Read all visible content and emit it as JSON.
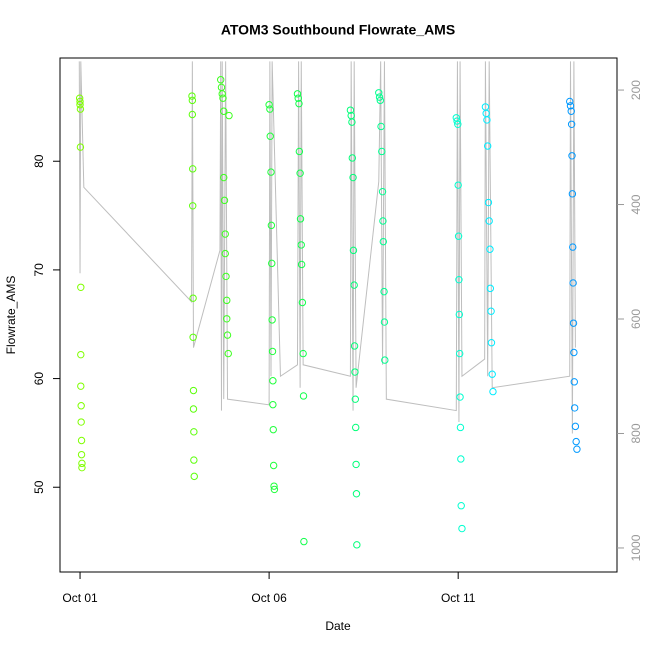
{
  "chart_data": {
    "type": "scatter",
    "title": "ATOM3 Southbound Flowrate_AMS",
    "x_label": "Date",
    "y_label": "Flowrate_AMS",
    "xlim": [
      0.47,
      15.2
    ],
    "xticks": [
      {
        "value": 1,
        "label": "Oct 01"
      },
      {
        "value": 6,
        "label": "Oct 06"
      },
      {
        "value": 11,
        "label": "Oct 11"
      }
    ],
    "ylim": [
      42.2,
      89.5
    ],
    "yticks": [
      50,
      60,
      70,
      80
    ],
    "y2lim": [
      1042,
      144
    ],
    "y2ticks": [
      200,
      400,
      600,
      800,
      1000
    ],
    "series": [
      {
        "color": "#7fff00",
        "x": [
          0.99,
          1.0,
          1.0,
          1.01,
          1.01,
          1.02,
          1.02,
          1.02,
          1.03,
          1.03,
          1.04,
          1.04,
          1.05,
          1.05
        ],
        "values": [
          85.8,
          85.5,
          85.2,
          84.8,
          81.3,
          68.4,
          62.2,
          59.3,
          57.5,
          56.0,
          54.3,
          53.0,
          52.2,
          51.8
        ]
      },
      {
        "color": "#5cff0a",
        "x": [
          3.96,
          3.97,
          3.97,
          3.98,
          3.98,
          3.99,
          3.99,
          4.0,
          4.0,
          4.01,
          4.01,
          4.02
        ],
        "values": [
          86.0,
          85.6,
          84.3,
          79.3,
          75.9,
          67.4,
          63.8,
          58.9,
          57.2,
          55.1,
          52.5,
          51.0
        ]
      },
      {
        "color": "#3cff1e",
        "x": [
          4.72,
          4.74,
          4.76,
          4.78,
          4.8,
          4.8,
          4.82,
          4.84,
          4.84,
          4.86,
          4.88,
          4.88,
          4.9,
          4.92,
          4.94
        ],
        "values": [
          87.5,
          86.8,
          86.2,
          85.8,
          84.6,
          78.5,
          76.4,
          73.3,
          71.5,
          69.4,
          67.2,
          65.5,
          64.0,
          62.3,
          84.2
        ]
      },
      {
        "color": "#20ff3c",
        "x": [
          6.0,
          6.02,
          6.03,
          6.05,
          6.06,
          6.07,
          6.08,
          6.09,
          6.1,
          6.1,
          6.11,
          6.12,
          6.13,
          6.14
        ],
        "values": [
          85.2,
          84.8,
          82.3,
          79.0,
          74.1,
          70.6,
          65.4,
          62.5,
          59.8,
          57.6,
          55.3,
          52.0,
          50.1,
          49.8
        ]
      },
      {
        "color": "#10ff4a",
        "x": [
          6.75,
          6.77,
          6.79,
          6.8,
          6.82,
          6.83,
          6.85,
          6.86,
          6.88,
          6.9,
          6.91,
          6.92
        ],
        "values": [
          86.2,
          85.8,
          85.3,
          80.9,
          78.9,
          74.7,
          72.3,
          70.5,
          67.0,
          62.3,
          58.4,
          45.0
        ]
      },
      {
        "color": "#00ff78",
        "x": [
          8.15,
          8.17,
          8.19,
          8.2,
          8.22,
          8.23,
          8.25,
          8.26,
          8.27,
          8.28,
          8.29,
          8.3,
          8.31,
          8.32
        ],
        "values": [
          84.7,
          84.2,
          83.6,
          80.3,
          78.5,
          71.8,
          68.6,
          63.0,
          60.6,
          58.1,
          55.5,
          52.1,
          49.4,
          44.7
        ]
      },
      {
        "color": "#00ff90",
        "x": [
          8.9,
          8.92,
          8.94,
          8.96,
          8.98,
          9.0,
          9.01,
          9.02,
          9.04,
          9.05,
          9.06
        ],
        "values": [
          86.3,
          85.9,
          85.6,
          83.2,
          80.9,
          77.2,
          74.5,
          72.6,
          68.0,
          65.2,
          61.7
        ]
      },
      {
        "color": "#00ffd0",
        "x": [
          10.95,
          10.97,
          10.99,
          11.0,
          11.01,
          11.02,
          11.03,
          11.04,
          11.05,
          11.06,
          11.07,
          11.08,
          11.1
        ],
        "values": [
          84.0,
          83.7,
          83.4,
          77.8,
          73.1,
          69.1,
          65.9,
          62.3,
          58.3,
          55.5,
          52.6,
          48.3,
          46.2
        ]
      },
      {
        "color": "#00ecff",
        "x": [
          11.72,
          11.74,
          11.76,
          11.78,
          11.8,
          11.82,
          11.84,
          11.85,
          11.87,
          11.88,
          11.9,
          11.92
        ],
        "values": [
          85.0,
          84.4,
          83.8,
          81.4,
          76.2,
          74.5,
          71.9,
          68.3,
          66.2,
          63.3,
          60.4,
          58.8
        ]
      },
      {
        "color": "#0099ff",
        "x": [
          13.95,
          13.97,
          13.99,
          14.0,
          14.01,
          14.02,
          14.03,
          14.04,
          14.05,
          14.06,
          14.07,
          14.08,
          14.1,
          14.12,
          14.14
        ],
        "values": [
          85.5,
          85.1,
          84.6,
          83.4,
          80.5,
          77.0,
          72.1,
          68.8,
          65.1,
          62.4,
          59.7,
          57.3,
          55.6,
          54.2,
          53.5
        ]
      },
      {
        "type": "line",
        "axis": "y2",
        "color": "#bebebe",
        "x": [
          0.98,
          1.0,
          1.02,
          1.1,
          3.95,
          3.97,
          4.0,
          4.7,
          4.72,
          4.74,
          4.76,
          4.8,
          4.85,
          4.9,
          6.0,
          6.02,
          6.05,
          6.08,
          6.3,
          6.75,
          6.78,
          6.82,
          6.85,
          6.9,
          8.15,
          8.17,
          8.22,
          8.25,
          8.3,
          8.9,
          8.95,
          9.0,
          9.05,
          9.1,
          10.95,
          10.98,
          11.02,
          11.05,
          11.1,
          11.7,
          11.72,
          11.78,
          11.82,
          11.9,
          13.95,
          13.97,
          14.02,
          14.06,
          14.1
        ],
        "values": [
          150,
          520,
          150,
          370,
          570,
          150,
          650,
          480,
          150,
          760,
          150,
          740,
          150,
          740,
          750,
          150,
          700,
          150,
          700,
          680,
          150,
          720,
          150,
          680,
          700,
          150,
          760,
          150,
          720,
          360,
          150,
          680,
          150,
          740,
          760,
          150,
          780,
          150,
          700,
          670,
          150,
          700,
          150,
          720,
          700,
          150,
          800,
          150,
          650
        ]
      }
    ]
  }
}
